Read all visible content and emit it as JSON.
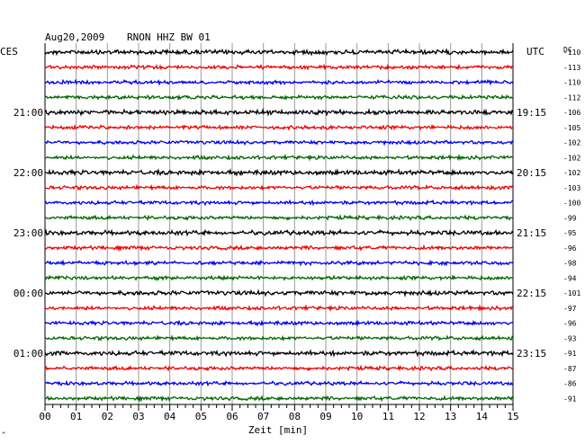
{
  "header": {
    "date": "Aug20,2009",
    "station": "RNON HHZ BW 01",
    "left_zone": "CES",
    "right_zone": "UTC",
    "dc_label": "DC"
  },
  "chart_data": {
    "type": "line",
    "title": "RNON HHZ BW 01",
    "xlabel": "Zeit [min]",
    "xlim": [
      0,
      15
    ],
    "x_ticks": [
      "00",
      "01",
      "02",
      "03",
      "04",
      "05",
      "06",
      "07",
      "08",
      "09",
      "10",
      "11",
      "12",
      "13",
      "14",
      "15"
    ],
    "left_hour_labels": [
      {
        "row": 4,
        "text": "21:00"
      },
      {
        "row": 8,
        "text": "22:00"
      },
      {
        "row": 12,
        "text": "23:00"
      },
      {
        "row": 16,
        "text": "00:00"
      },
      {
        "row": 20,
        "text": "01:00"
      }
    ],
    "right_hour_labels": [
      {
        "row": 4,
        "text": "19:15"
      },
      {
        "row": 8,
        "text": "20:15"
      },
      {
        "row": 12,
        "text": "21:15"
      },
      {
        "row": 16,
        "text": "22:15"
      },
      {
        "row": 20,
        "text": "23:15"
      }
    ],
    "dc_offsets": [
      -110,
      -113,
      -110,
      -112,
      -106,
      -105,
      -102,
      -102,
      -102,
      -103,
      -100,
      -99,
      -95,
      -96,
      -98,
      -94,
      -101,
      -97,
      -96,
      -93,
      -91,
      -87,
      -86,
      -91
    ],
    "trace_colors": [
      "#000000",
      "#ee0000",
      "#0000ee",
      "#006600"
    ],
    "grid": true
  }
}
